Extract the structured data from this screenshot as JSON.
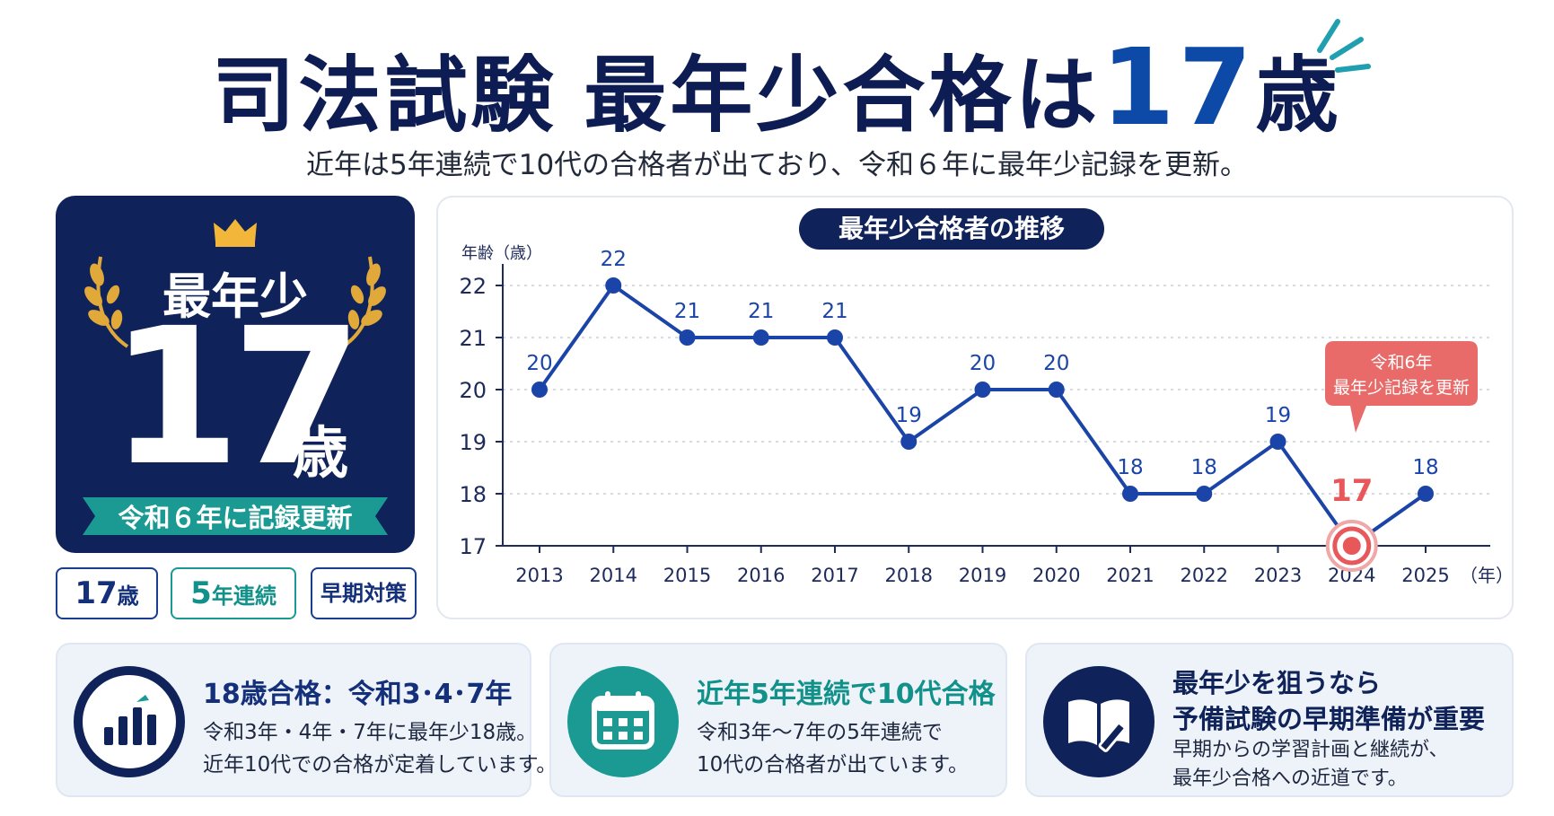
{
  "header": {
    "title_part1": "司法試験",
    "title_part2": "最年少合格は",
    "title_num": "17",
    "title_unit": "歳",
    "subtitle": "近年は5年連続で10代の合格者が出ており、令和６年に最年少記録を更新。"
  },
  "hero": {
    "label": "最年少",
    "age": "17",
    "unit": "歳",
    "ribbon": "令和６年に記録更新",
    "icons": [
      "crown-icon",
      "laurel-icon"
    ]
  },
  "tags": [
    {
      "num": "17",
      "unit": "歳"
    },
    {
      "num": "5",
      "unit": "年連続"
    },
    {
      "text": "早期対策"
    }
  ],
  "chart_data": {
    "type": "line",
    "title": "最年少合格者の推移",
    "ylabel": "年齢（歳）",
    "xunit": "（年）",
    "categories": [
      "2013",
      "2014",
      "2015",
      "2016",
      "2017",
      "2018",
      "2019",
      "2020",
      "2021",
      "2022",
      "2023",
      "2024",
      "2025"
    ],
    "values": [
      20,
      22,
      21,
      21,
      21,
      19,
      20,
      20,
      18,
      18,
      19,
      17,
      18
    ],
    "yticks": [
      17,
      18,
      19,
      20,
      21,
      22
    ],
    "ylim": [
      17,
      22
    ],
    "grid": true,
    "highlight_index": 11,
    "callout_line1": "令和6年",
    "callout_line2": "最年少記録を更新",
    "colors": {
      "line": "#1a44a8",
      "highlight": "#e8585a",
      "callout": "#e86b6a"
    }
  },
  "cards": [
    {
      "icon": "bar-chart-icon",
      "head_a": "18歳合格",
      "head_b": "：令和3･4･7年",
      "line1": "令和3年・4年・7年に最年少18歳。",
      "line2": "近年10代での合格が定着しています。"
    },
    {
      "icon": "calendar-icon",
      "head_a": "近年5年連続で10代合格",
      "line1": "令和3年〜7年の5年連続で",
      "line2": "10代の合格者が出ています。"
    },
    {
      "icon": "book-pencil-icon",
      "head_a": "最年少を狙うなら",
      "head_b": "予備試験の早期準備が重要",
      "line1": "早期からの学習計画と継続が、",
      "line2": "最年少合格への近道です。"
    }
  ],
  "colors": {
    "navy": "#0f2259",
    "blue": "#0d4aa8",
    "teal": "#1a9a93",
    "accent": "#e8585a"
  }
}
